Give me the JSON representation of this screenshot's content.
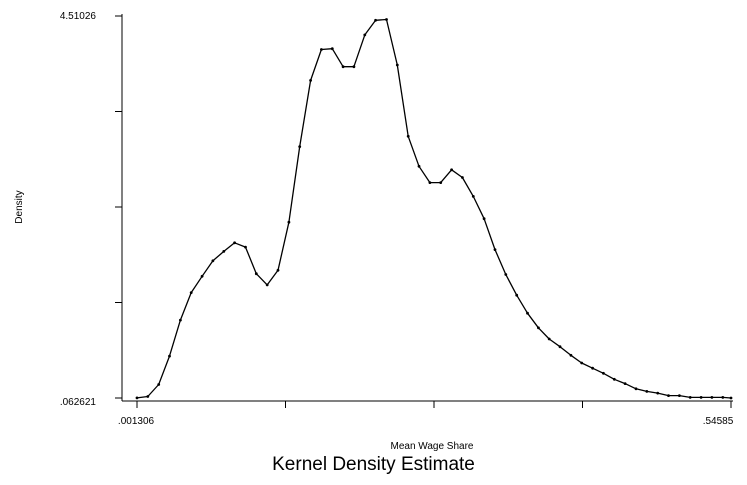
{
  "chart_data": {
    "type": "line",
    "title": "",
    "caption": "Kernel Density Estimate",
    "xlabel": "Mean Wage Share",
    "ylabel": "Density",
    "xlim": [
      0.001306,
      0.54585
    ],
    "ylim": [
      0.062621,
      4.51026
    ],
    "x_tick_labels": [
      ".001306",
      ".54585"
    ],
    "y_tick_labels": [
      ".062621",
      "4.51026"
    ],
    "x_tick_count": 5,
    "y_tick_count": 5,
    "grid": false,
    "line_color": "#000000",
    "marker": "dot",
    "x": [
      0.001306,
      0.01125,
      0.0212,
      0.03114,
      0.04109,
      0.05103,
      0.06097,
      0.07092,
      0.08086,
      0.09081,
      0.10075,
      0.1107,
      0.12064,
      0.13058,
      0.14053,
      0.15047,
      0.16042,
      0.17036,
      0.1803,
      0.19025,
      0.20019,
      0.21014,
      0.22008,
      0.23003,
      0.23997,
      0.24991,
      0.25986,
      0.2698,
      0.27975,
      0.28969,
      0.29963,
      0.30958,
      0.31952,
      0.32947,
      0.33941,
      0.34935,
      0.3593,
      0.36924,
      0.37919,
      0.38913,
      0.39908,
      0.40902,
      0.41896,
      0.42891,
      0.43885,
      0.4488,
      0.45874,
      0.46868,
      0.47863,
      0.48857,
      0.49852,
      0.50846,
      0.5184,
      0.52835,
      0.53829,
      0.54585
    ],
    "y": [
      0.064,
      0.08,
      0.22,
      0.55,
      0.97,
      1.29,
      1.48,
      1.66,
      1.77,
      1.87,
      1.82,
      1.51,
      1.38,
      1.55,
      2.11,
      2.99,
      3.76,
      4.12,
      4.13,
      3.92,
      3.92,
      4.29,
      4.46,
      4.47,
      3.94,
      3.11,
      2.76,
      2.57,
      2.57,
      2.72,
      2.63,
      2.41,
      2.15,
      1.79,
      1.5,
      1.26,
      1.05,
      0.88,
      0.75,
      0.66,
      0.56,
      0.47,
      0.41,
      0.35,
      0.28,
      0.23,
      0.17,
      0.14,
      0.12,
      0.09,
      0.09,
      0.07,
      0.07,
      0.07,
      0.07,
      0.063
    ]
  }
}
